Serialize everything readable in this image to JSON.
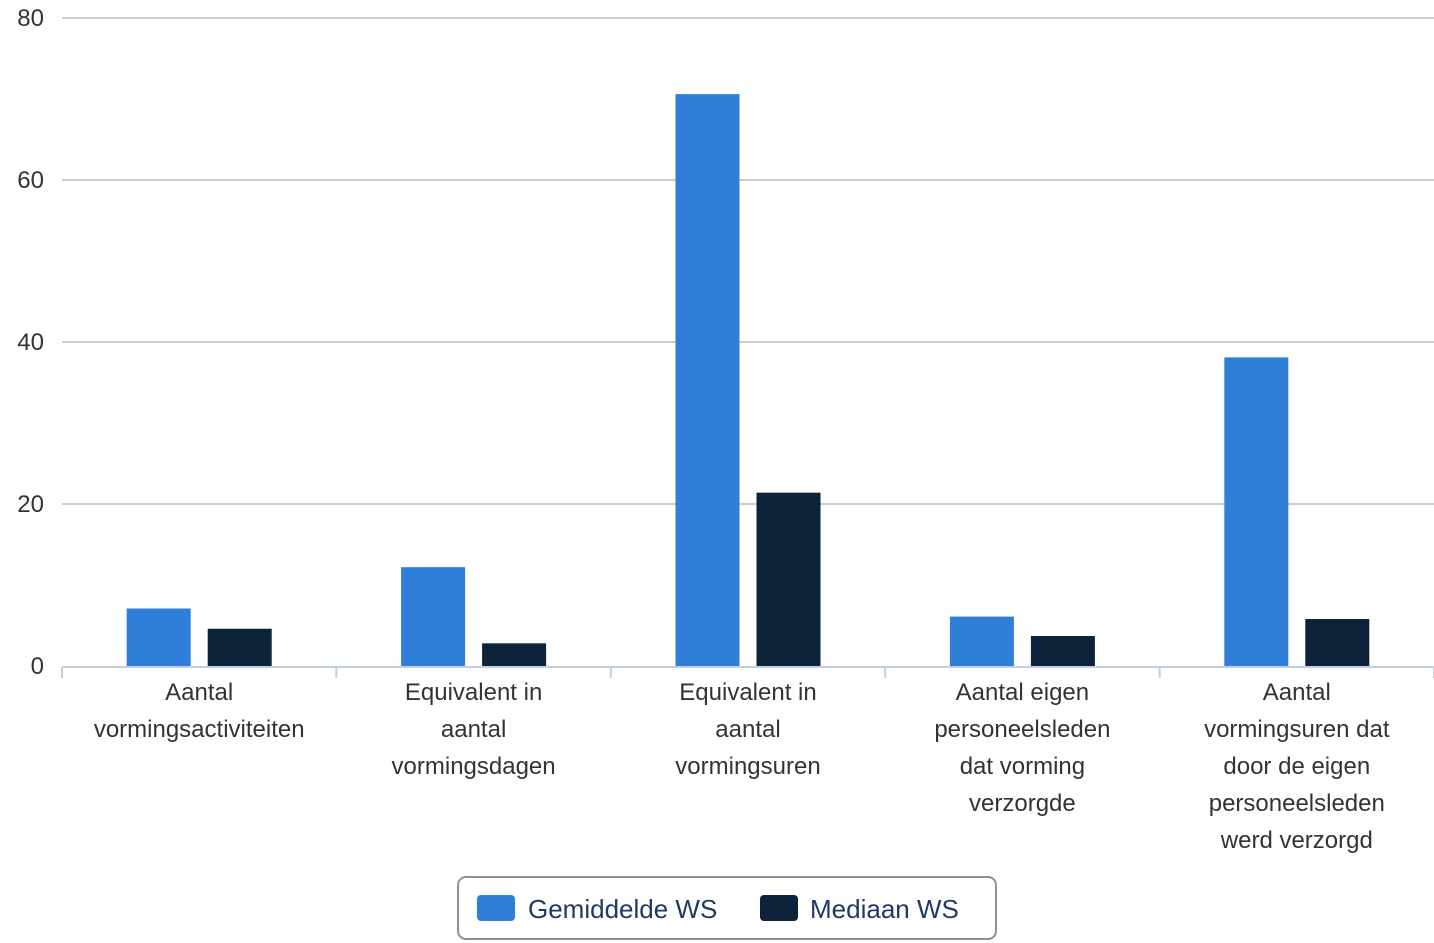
{
  "chart_data": {
    "type": "bar",
    "categories": [
      [
        "Aantal",
        "vormingsactiviteiten"
      ],
      [
        "Equivalent in",
        "aantal",
        "vormingsdagen"
      ],
      [
        "Equivalent in",
        "aantal",
        "vormingsuren"
      ],
      [
        "Aantal eigen",
        "personeelsleden",
        "dat vorming",
        "verzorgde"
      ],
      [
        "Aantal",
        "vormingsuren dat",
        "door de eigen",
        "personeelsleden",
        "werd verzorgd"
      ]
    ],
    "series": [
      {
        "name": "Gemiddelde WS",
        "color": "#2f7ed8",
        "values": [
          7.1,
          12.2,
          70.6,
          6.1,
          38.1
        ]
      },
      {
        "name": "Mediaan WS",
        "color": "#0d233a",
        "values": [
          4.6,
          2.8,
          21.4,
          3.7,
          5.8
        ]
      }
    ],
    "ylim": [
      0,
      80
    ],
    "yticks": [
      0,
      20,
      40,
      60,
      80
    ],
    "grid": true,
    "legend_position": "bottom-center"
  }
}
